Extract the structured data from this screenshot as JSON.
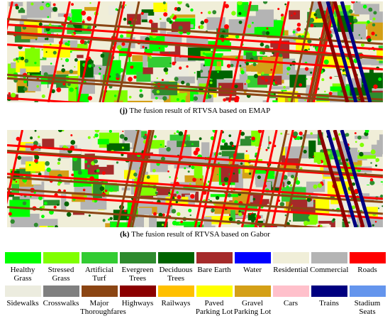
{
  "figures": [
    {
      "label": "(j)",
      "caption": "The fusion result of RTVSA based on EMAP"
    },
    {
      "label": "(k)",
      "caption": "The fusion result of RTVSA based on Gabor"
    }
  ],
  "legend": [
    {
      "name": "Healthy\nGrass",
      "color": "#00ff00"
    },
    {
      "name": "Stressed\nGrass",
      "color": "#80ff00"
    },
    {
      "name": "Artificial\nTurf",
      "color": "#33cc33"
    },
    {
      "name": "Evergreen\nTrees",
      "color": "#2e8b2e"
    },
    {
      "name": "Deciduous\nTrees",
      "color": "#006400"
    },
    {
      "name": "Bare Earth",
      "color": "#a52a2a"
    },
    {
      "name": "Water",
      "color": "#0000ff"
    },
    {
      "name": "Residential",
      "color": "#f0eed8"
    },
    {
      "name": "Commercial",
      "color": "#b4b4b4"
    },
    {
      "name": "Roads",
      "color": "#ff0000"
    },
    {
      "name": "Sidewalks",
      "color": "#ececdf"
    },
    {
      "name": "Crosswalks",
      "color": "#808080"
    },
    {
      "name": "Major\nThoroughfares",
      "color": "#8b4513"
    },
    {
      "name": "Highways",
      "color": "#8b0000"
    },
    {
      "name": "Railways",
      "color": "#ffc000"
    },
    {
      "name": "Paved\nParking Lot",
      "color": "#ffff00"
    },
    {
      "name": "Gravel\nParking Lot",
      "color": "#d4a017"
    },
    {
      "name": "Cars",
      "color": "#ffc0cb"
    },
    {
      "name": "Trains",
      "color": "#000080"
    },
    {
      "name": "Stadium\nSeats",
      "color": "#6495ed"
    }
  ]
}
